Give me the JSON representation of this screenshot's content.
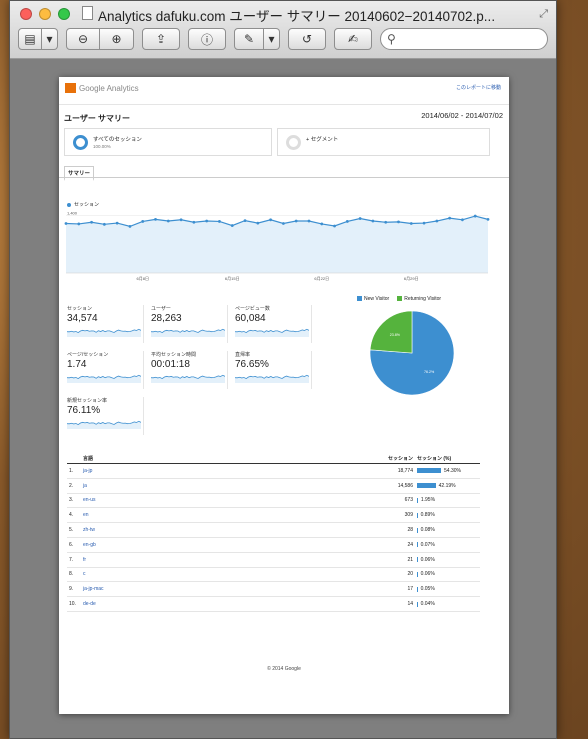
{
  "window": {
    "title": "Analytics dafuku.com ユーザー サマリー 20140602−20140702.p..."
  },
  "toolbar": {
    "search_placeholder": ""
  },
  "report": {
    "logo_text": "Google Analytics",
    "report_link": "このレポートに移動",
    "title": "ユーザー サマリー",
    "date_range": "2014/06/02 - 2014/07/02",
    "segment_all_label": "すべてのセッション",
    "segment_all_sub": "100.00%",
    "segment_add_label": "+ セグメント",
    "tab_summary": "サマリー",
    "legend_sessions": "セッション",
    "footer": "© 2014 Google"
  },
  "chart_data": [
    {
      "type": "area",
      "series": [
        {
          "name": "セッション",
          "values": [
            1200,
            1190,
            1230,
            1180,
            1210,
            1130,
            1250,
            1300,
            1260,
            1290,
            1230,
            1260,
            1250,
            1150,
            1270,
            1210,
            1290,
            1200,
            1260,
            1260,
            1190,
            1140,
            1250,
            1320,
            1260,
            1230,
            1240,
            1200,
            1210,
            1260,
            1330,
            1290,
            1380,
            1300
          ]
        }
      ],
      "y_tick_labels": [
        "1,400",
        "700"
      ],
      "x_tick_labels": [
        "6月8日",
        "6月15日",
        "6月22日",
        "6月29日"
      ],
      "ylim": [
        0,
        1600
      ]
    },
    {
      "type": "pie",
      "labels": [
        "New Visitor",
        "Returning Visitor"
      ],
      "values": [
        76.2,
        23.8
      ],
      "slice_labels": [
        "76.2%",
        "23.8%"
      ],
      "colors": [
        "#3d8fd0",
        "#55b33d"
      ],
      "legend": "top"
    },
    {
      "type": "table",
      "columns": [
        "言語",
        "セッション",
        "セッション (%)"
      ],
      "rows": [
        {
          "idx": "1.",
          "lang": "ja-jp",
          "sessions": "18,774",
          "pct": "54.30%",
          "pct_value": 54.3
        },
        {
          "idx": "2.",
          "lang": "ja",
          "sessions": "14,586",
          "pct": "42.19%",
          "pct_value": 42.19
        },
        {
          "idx": "3.",
          "lang": "en-us",
          "sessions": "673",
          "pct": "1.95%",
          "pct_value": 1.95
        },
        {
          "idx": "4.",
          "lang": "en",
          "sessions": "309",
          "pct": "0.89%",
          "pct_value": 0.89
        },
        {
          "idx": "5.",
          "lang": "zh-tw",
          "sessions": "28",
          "pct": "0.08%",
          "pct_value": 0.08
        },
        {
          "idx": "6.",
          "lang": "en-gb",
          "sessions": "24",
          "pct": "0.07%",
          "pct_value": 0.07
        },
        {
          "idx": "7.",
          "lang": "fr",
          "sessions": "21",
          "pct": "0.06%",
          "pct_value": 0.06
        },
        {
          "idx": "8.",
          "lang": "c",
          "sessions": "20",
          "pct": "0.06%",
          "pct_value": 0.06
        },
        {
          "idx": "9.",
          "lang": "ja-jp-mac",
          "sessions": "17",
          "pct": "0.05%",
          "pct_value": 0.05
        },
        {
          "idx": "10.",
          "lang": "de-de",
          "sessions": "14",
          "pct": "0.04%",
          "pct_value": 0.04
        }
      ]
    }
  ],
  "metrics": [
    {
      "label": "セッション",
      "value": "34,574"
    },
    {
      "label": "ユーザー",
      "value": "28,263"
    },
    {
      "label": "ページビュー数",
      "value": "60,084"
    },
    {
      "label": "ページ/セッション",
      "value": "1.74"
    },
    {
      "label": "平均セッション時間",
      "value": "00:01:18"
    },
    {
      "label": "直帰率",
      "value": "76.65%"
    },
    {
      "label": "新規セッション率",
      "value": "76.11%"
    }
  ],
  "colors": {
    "accent": "#3d8fd0",
    "returning": "#55b33d"
  }
}
